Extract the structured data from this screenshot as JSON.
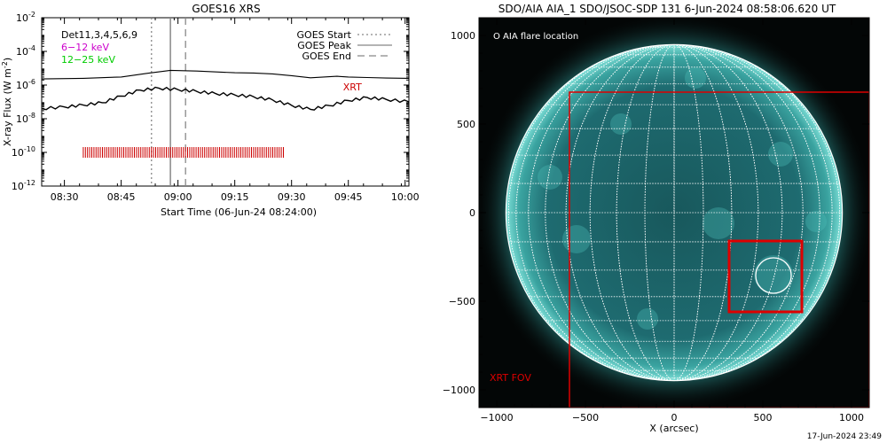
{
  "chart_data": [
    {
      "type": "line",
      "title": "GOES16 XRS",
      "xlabel": "Start Time (06-Jun-24 08:24:00)",
      "ylabel": "X-ray Flux (W m",
      "ylabel_sup": "-2",
      "ylabel_close": ")",
      "xlim": [
        "08:24",
        "10:01"
      ],
      "ylim": [
        1e-12,
        0.01
      ],
      "yscale": "log",
      "xticks": [
        "08:30",
        "08:45",
        "09:00",
        "09:15",
        "09:30",
        "09:45",
        "10:00"
      ],
      "yticks": [
        {
          "base": "10",
          "exp": "-2",
          "value": 0.01
        },
        {
          "base": "10",
          "exp": "-4",
          "value": 0.0001
        },
        {
          "base": "10",
          "exp": "-6",
          "value": 1e-06
        },
        {
          "base": "10",
          "exp": "-8",
          "value": 1e-08
        },
        {
          "base": "10",
          "exp": "-10",
          "value": 1e-10
        },
        {
          "base": "10",
          "exp": "-12",
          "value": 1e-12
        }
      ],
      "legend_left": [
        {
          "label": "Det11,3,4,5,6,9",
          "color": "#000000"
        },
        {
          "label": "6−12 keV",
          "color": "#cc00cc"
        },
        {
          "label": "12−25 keV",
          "color": "#00cc00"
        }
      ],
      "legend_right": [
        {
          "label": "GOES Start",
          "style": "dotted"
        },
        {
          "label": "GOES Peak",
          "style": "solid"
        },
        {
          "label": "GOES End",
          "style": "dashed"
        }
      ],
      "vlines": {
        "start": "08:53",
        "peak": "08:58",
        "end": "09:02"
      },
      "series": [
        {
          "color": "#000000",
          "x": [
            "08:24",
            "08:35",
            "08:45",
            "08:52",
            "08:58",
            "09:05",
            "09:15",
            "09:20",
            "09:25",
            "09:30",
            "09:35",
            "09:42",
            "09:45",
            "09:50",
            "09:55",
            "10:01"
          ],
          "values": [
            2.3e-06,
            2.5e-06,
            3e-06,
            5e-06,
            7.5e-06,
            6.8e-06,
            5.4e-06,
            5.2e-06,
            4.6e-06,
            3.6e-06,
            2.7e-06,
            3.3e-06,
            3e-06,
            2.8e-06,
            2.6e-06,
            2.5e-06
          ]
        },
        {
          "color": "#000000",
          "x": [
            "08:24",
            "08:30",
            "08:35",
            "08:40",
            "08:45",
            "08:50",
            "08:55",
            "09:00",
            "09:05",
            "09:10",
            "09:15",
            "09:20",
            "09:25",
            "09:30",
            "09:35",
            "09:40",
            "09:45",
            "09:50",
            "09:55",
            "10:01"
          ],
          "values": [
            4e-08,
            5e-08,
            6.5e-08,
            9e-08,
            2.2e-07,
            5e-07,
            6.5e-07,
            5.4e-07,
            4.2e-07,
            3.1e-07,
            2.6e-07,
            2e-07,
            1.3e-07,
            6.2e-08,
            3.6e-08,
            6e-08,
            1.2e-07,
            1.8e-07,
            1.4e-07,
            1e-07
          ]
        }
      ],
      "annotation": {
        "text": "XRT",
        "x": "09:45",
        "y": 8e-07,
        "color": "#cc0000"
      },
      "xrt_ticks": {
        "start": "08:35",
        "end": "09:28",
        "y": 1e-10,
        "color": "#cc0000"
      }
    },
    {
      "type": "image",
      "title": "SDO/AIA AIA_1 SDO/JSOC-SDP 131  6-Jun-2024 08:58:06.620 UT",
      "xlabel": "X (arcsec)",
      "xlim": [
        -1100,
        1100
      ],
      "ylim": [
        -1100,
        1100
      ],
      "xticks": [
        -1000,
        -500,
        0,
        500,
        1000
      ],
      "yticks": [
        1000,
        500,
        0,
        -500,
        -1000
      ],
      "solar_radius": 948,
      "legend": "O AIA flare location",
      "flare_location": {
        "x": 560,
        "y": -355,
        "r": 100
      },
      "xrt_fov": {
        "x1": -590,
        "x2": 1100,
        "y1": 680,
        "y2": -1100,
        "label": "XRT FOV"
      },
      "xrt_box": {
        "x1": 310,
        "x2": 720,
        "y1": -160,
        "y2": -560
      },
      "box_color": "#dd0000",
      "disk_color": "#1e6e72"
    }
  ],
  "footer": {
    "timestamp": "17-Jun-2024 23:49"
  }
}
